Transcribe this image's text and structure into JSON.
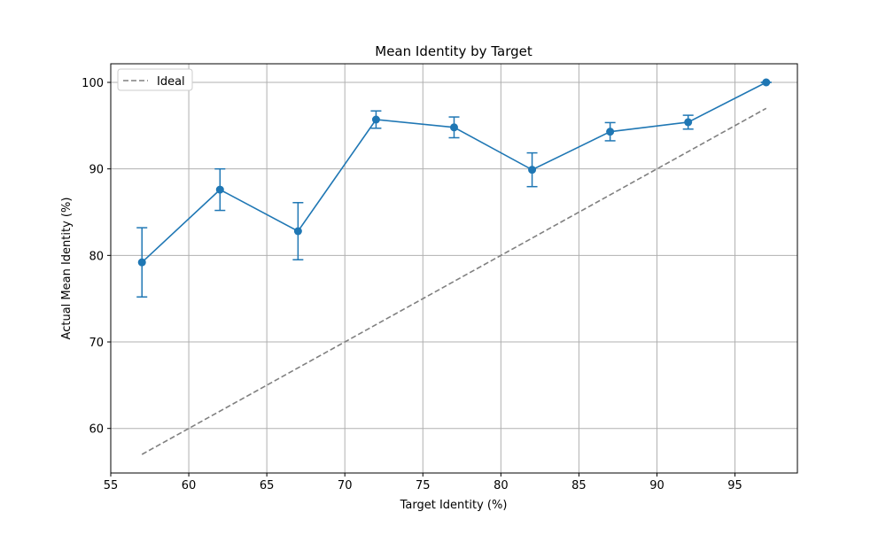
{
  "chart_data": {
    "type": "line",
    "title": "Mean Identity by Target",
    "xlabel": "Target Identity (%)",
    "ylabel": "Actual Mean Identity (%)",
    "x": [
      57,
      62,
      67,
      72,
      77,
      82,
      87,
      92,
      97
    ],
    "series": [
      {
        "color": "#1f77b4",
        "values": [
          79.2,
          87.6,
          82.8,
          95.7,
          94.8,
          89.9,
          94.3,
          95.4,
          100.0
        ],
        "errors": [
          4.0,
          2.4,
          3.3,
          1.0,
          1.2,
          1.95,
          1.05,
          0.8,
          0
        ]
      },
      {
        "name": "Ideal",
        "color": "#808080",
        "dashed": true,
        "x": [
          57,
          97
        ],
        "values": [
          57,
          97
        ]
      }
    ],
    "xlim": [
      55,
      99
    ],
    "ylim": [
      54.85,
      102.15
    ],
    "xticks": [
      55,
      60,
      65,
      70,
      75,
      80,
      85,
      90,
      95
    ],
    "yticks": [
      60,
      70,
      80,
      90,
      100
    ],
    "grid": true,
    "legend": "upper left"
  }
}
